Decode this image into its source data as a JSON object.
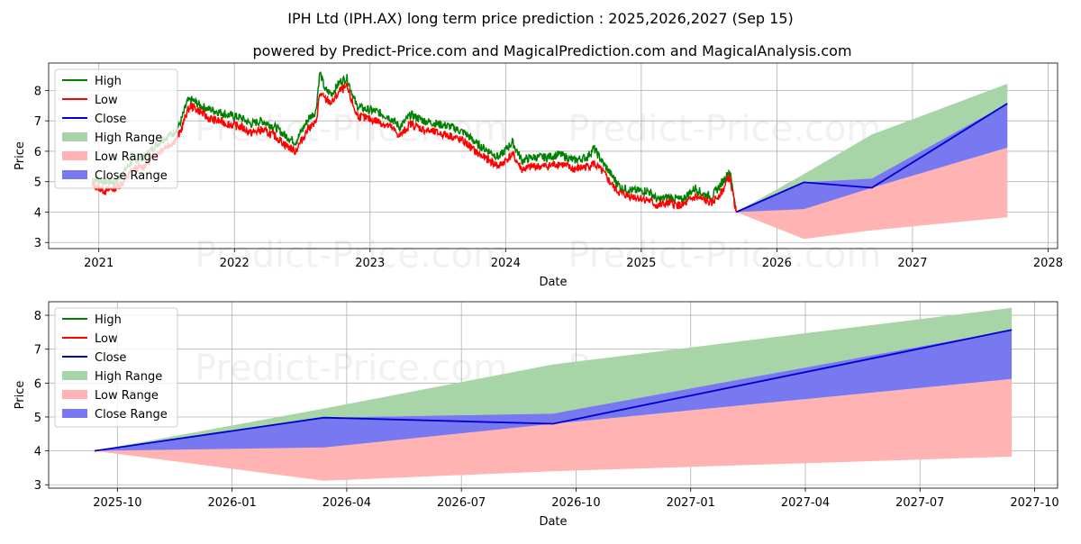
{
  "title": "IPH Ltd (IPH.AX) long term price prediction : 2025,2026,2027 (Sep 15)",
  "subtitle": "powered by Predict-Price.com and MagicalPrediction.com and MagicalAnalysis.com",
  "watermark": "Predict-Price.com",
  "colors": {
    "high": "#008000",
    "low": "#ff0000",
    "close": "#0000cd",
    "high_range": "#a8d5a8",
    "low_range": "#ffb3b3",
    "close_range": "#7878f0"
  },
  "chart_data": [
    {
      "type": "line",
      "xlabel": "Date",
      "ylabel": "Price",
      "xlim": [
        2020.63,
        2028.07
      ],
      "ylim": [
        2.8,
        8.9
      ],
      "x_ticks": [
        2021,
        2022,
        2023,
        2024,
        2025,
        2026,
        2027,
        2028
      ],
      "x_tick_labels": [
        "2021",
        "2022",
        "2023",
        "2024",
        "2025",
        "2026",
        "2027",
        "2028"
      ],
      "y_ticks": [
        3,
        4,
        5,
        6,
        7,
        8
      ],
      "y_tick_labels": [
        "3",
        "4",
        "5",
        "6",
        "7",
        "8"
      ],
      "legend": [
        "High",
        "Low",
        "Close",
        "High Range",
        "Low Range",
        "Close Range"
      ],
      "legend_position": "top-left",
      "history_anchors": {
        "x": [
          2020.95,
          2021.05,
          2021.12,
          2021.18,
          2021.25,
          2021.33,
          2021.4,
          2021.47,
          2021.55,
          2021.6,
          2021.65,
          2021.68,
          2021.75,
          2021.8,
          2021.88,
          2021.95,
          2022.05,
          2022.12,
          2022.2,
          2022.3,
          2022.38,
          2022.45,
          2022.55,
          2022.6,
          2022.63,
          2022.67,
          2022.72,
          2022.78,
          2022.83,
          2022.9,
          2022.95,
          2023.05,
          2023.15,
          2023.22,
          2023.3,
          2023.4,
          2023.5,
          2023.6,
          2023.7,
          2023.8,
          2023.88,
          2023.95,
          2024.05,
          2024.12,
          2024.2,
          2024.3,
          2024.4,
          2024.5,
          2024.6,
          2024.65,
          2024.72,
          2024.8,
          2024.85,
          2024.95,
          2025.05,
          2025.12,
          2025.2,
          2025.3,
          2025.4,
          2025.45,
          2025.52,
          2025.6,
          2025.63,
          2025.65,
          2025.7
        ],
        "low": [
          4.9,
          4.7,
          4.8,
          5.0,
          5.4,
          5.5,
          5.8,
          6.1,
          6.3,
          6.6,
          7.3,
          7.5,
          7.3,
          7.1,
          7.0,
          6.9,
          6.8,
          6.6,
          6.7,
          6.5,
          6.2,
          6.0,
          6.8,
          6.9,
          7.9,
          7.7,
          7.6,
          8.0,
          8.1,
          7.2,
          7.1,
          7.0,
          6.8,
          6.5,
          6.9,
          6.7,
          6.6,
          6.5,
          6.3,
          5.9,
          5.7,
          5.5,
          5.9,
          5.4,
          5.5,
          5.5,
          5.6,
          5.4,
          5.5,
          5.6,
          5.3,
          4.8,
          4.6,
          4.5,
          4.4,
          4.2,
          4.3,
          4.2,
          4.5,
          4.4,
          4.3,
          4.7,
          5.0,
          5.2,
          4.0
        ],
        "high": [
          5.1,
          5.0,
          5.0,
          5.3,
          5.7,
          5.8,
          6.1,
          6.4,
          6.6,
          6.9,
          7.6,
          7.7,
          7.5,
          7.4,
          7.3,
          7.2,
          7.1,
          6.9,
          7.0,
          6.8,
          6.5,
          6.3,
          7.1,
          7.3,
          8.6,
          8.0,
          7.9,
          8.3,
          8.4,
          7.5,
          7.4,
          7.3,
          7.1,
          6.8,
          7.2,
          7.0,
          6.9,
          6.8,
          6.6,
          6.2,
          6.0,
          5.8,
          6.3,
          5.7,
          5.8,
          5.8,
          5.9,
          5.7,
          5.8,
          6.1,
          5.6,
          5.1,
          4.8,
          4.7,
          4.7,
          4.4,
          4.5,
          4.4,
          4.8,
          4.6,
          4.5,
          5.0,
          5.2,
          5.4,
          4.1
        ]
      },
      "forecast": {
        "x": [
          2025.7,
          2026.2,
          2026.7,
          2027.7
        ],
        "close": [
          4.0,
          4.98,
          4.8,
          7.57
        ],
        "high_upper": [
          4.0,
          5.25,
          6.55,
          8.22
        ],
        "low_lower": [
          4.0,
          3.12,
          3.4,
          3.83
        ],
        "close_upper": [
          4.0,
          4.98,
          5.1,
          7.57
        ],
        "close_lower": [
          4.0,
          4.1,
          4.8,
          6.12
        ],
        "low_upper": [
          4.0,
          4.98,
          4.8,
          6.12
        ]
      }
    },
    {
      "type": "line",
      "xlabel": "Date",
      "ylabel": "Price",
      "xlim": [
        2025.6,
        2027.8
      ],
      "ylim": [
        2.9,
        8.4
      ],
      "x_ticks": [
        2025.75,
        2026.0,
        2026.25,
        2026.5,
        2026.75,
        2027.0,
        2027.25,
        2027.5,
        2027.75
      ],
      "x_tick_labels": [
        "2025-10",
        "2026-01",
        "2026-04",
        "2026-07",
        "2026-10",
        "2027-01",
        "2027-04",
        "2027-07",
        "2027-10"
      ],
      "y_ticks": [
        3,
        4,
        5,
        6,
        7,
        8
      ],
      "y_tick_labels": [
        "3",
        "4",
        "5",
        "6",
        "7",
        "8"
      ],
      "legend": [
        "High",
        "Low",
        "Close",
        "High Range",
        "Low Range",
        "Close Range"
      ],
      "legend_position": "top-left",
      "forecast": {
        "x": [
          2025.7,
          2026.2,
          2026.7,
          2027.7
        ],
        "close": [
          4.0,
          4.98,
          4.8,
          7.57
        ],
        "high_upper": [
          4.0,
          5.25,
          6.55,
          8.22
        ],
        "low_lower": [
          4.0,
          3.12,
          3.4,
          3.83
        ],
        "close_upper": [
          4.0,
          4.98,
          5.1,
          7.57
        ],
        "close_lower": [
          4.0,
          4.1,
          4.8,
          6.12
        ],
        "low_upper": [
          4.0,
          4.98,
          4.8,
          6.12
        ]
      }
    }
  ]
}
